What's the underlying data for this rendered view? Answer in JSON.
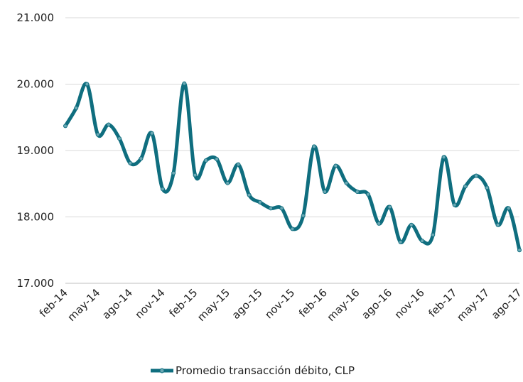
{
  "chart_data": {
    "type": "line",
    "categories": [
      "feb-14",
      null,
      null,
      "may-14",
      null,
      null,
      "ago-14",
      null,
      null,
      "nov-14",
      null,
      null,
      "feb-15",
      null,
      null,
      "may-15",
      null,
      null,
      "ago-15",
      null,
      null,
      "nov-15",
      null,
      null,
      "feb-16",
      null,
      null,
      "may-16",
      null,
      null,
      "ago-16",
      null,
      null,
      "nov-16",
      null,
      null,
      "feb-17",
      null,
      null,
      "may-17",
      null,
      null,
      "ago-17"
    ],
    "series": [
      {
        "name": "Promedio transacción débito, CLP",
        "color": "#0f6e7f",
        "values": [
          19370,
          19640,
          20000,
          19240,
          19390,
          19180,
          18810,
          18880,
          19260,
          18420,
          18660,
          20010,
          18630,
          18850,
          18870,
          18510,
          18790,
          18330,
          18220,
          18130,
          18130,
          17820,
          18020,
          19060,
          18380,
          18770,
          18510,
          18380,
          18340,
          17900,
          18150,
          17620,
          17880,
          17640,
          17730,
          18900,
          18180,
          18460,
          18620,
          18440,
          17880,
          18130,
          17500
        ]
      }
    ],
    "ylim": [
      17000,
      21000
    ],
    "yticks": [
      {
        "value": 17000,
        "label": "17.000"
      },
      {
        "value": 18000,
        "label": "18.000"
      },
      {
        "value": 19000,
        "label": "19.000"
      },
      {
        "value": 20000,
        "label": "20.000"
      },
      {
        "value": 21000,
        "label": "21.000"
      }
    ],
    "grid": true,
    "legend": "bottom"
  }
}
